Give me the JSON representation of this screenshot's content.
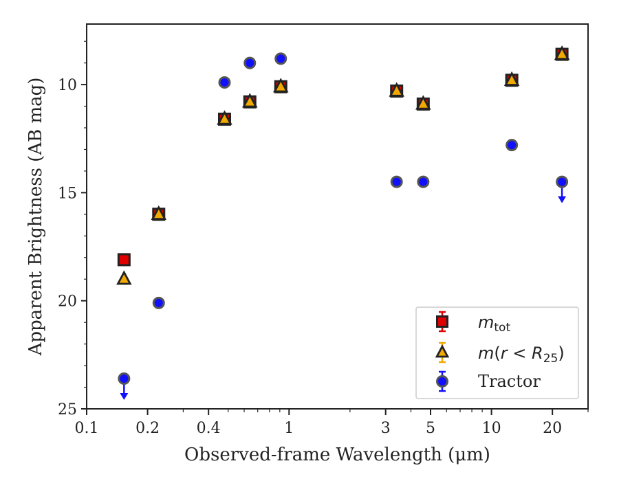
{
  "chart_data": {
    "type": "scatter",
    "xlabel": "Observed-frame Wavelength (μm)",
    "ylabel": "Apparent Brightness (AB mag)",
    "x_scale": "log",
    "y_inverted": true,
    "xlim": [
      0.1,
      30
    ],
    "ylim": [
      25,
      7.2
    ],
    "x_ticks": [
      0.1,
      0.2,
      0.4,
      1,
      3,
      5,
      10,
      20
    ],
    "x_tick_labels": [
      "0.1",
      "0.2",
      "0.4",
      "1",
      "3",
      "5",
      "10",
      "20"
    ],
    "y_ticks": [
      10,
      15,
      20,
      25
    ],
    "y_tick_labels": [
      "10",
      "15",
      "20",
      "25"
    ],
    "legend_position": "lower-right",
    "series": [
      {
        "name": "m_tot",
        "marker": "square",
        "color": "#e00000",
        "edge_color": "#222222",
        "points": [
          {
            "x": 0.153,
            "y": 18.1
          },
          {
            "x": 0.227,
            "y": 16.0
          },
          {
            "x": 0.48,
            "y": 11.6
          },
          {
            "x": 0.64,
            "y": 10.8
          },
          {
            "x": 0.91,
            "y": 10.1
          },
          {
            "x": 3.4,
            "y": 10.3
          },
          {
            "x": 4.6,
            "y": 10.9
          },
          {
            "x": 12.6,
            "y": 9.8
          },
          {
            "x": 22.3,
            "y": 8.6
          }
        ]
      },
      {
        "name": "m(r < R25)",
        "marker": "triangle",
        "color": "#f2a900",
        "edge_color": "#222222",
        "points": [
          {
            "x": 0.153,
            "y": 19.0
          },
          {
            "x": 0.227,
            "y": 16.0
          },
          {
            "x": 0.48,
            "y": 11.6
          },
          {
            "x": 0.64,
            "y": 10.8
          },
          {
            "x": 0.91,
            "y": 10.1
          },
          {
            "x": 3.4,
            "y": 10.3
          },
          {
            "x": 4.6,
            "y": 10.9
          },
          {
            "x": 12.6,
            "y": 9.8
          },
          {
            "x": 22.3,
            "y": 8.6
          }
        ]
      },
      {
        "name": "Tractor",
        "marker": "circle",
        "color": "#1010ff",
        "edge_color": "#555555",
        "points": [
          {
            "x": 0.153,
            "y": 23.6,
            "upper_limit": true
          },
          {
            "x": 0.227,
            "y": 20.1
          },
          {
            "x": 0.48,
            "y": 9.9
          },
          {
            "x": 0.64,
            "y": 9.0
          },
          {
            "x": 0.91,
            "y": 8.8
          },
          {
            "x": 3.4,
            "y": 14.5
          },
          {
            "x": 4.6,
            "y": 14.5
          },
          {
            "x": 12.6,
            "y": 12.8
          },
          {
            "x": 22.3,
            "y": 14.5,
            "upper_limit": true
          }
        ]
      }
    ]
  }
}
